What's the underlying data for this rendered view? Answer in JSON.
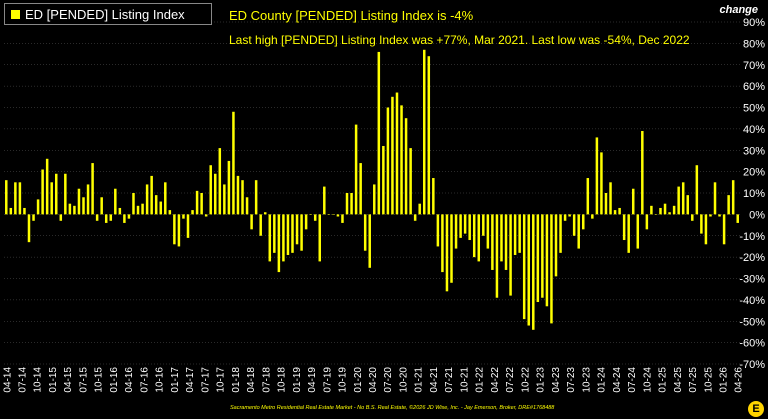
{
  "legend": {
    "label": "ED [PENDED] Listing Index"
  },
  "notes": {
    "line1": "ED County [PENDED] Listing Index is -4%",
    "line2": "Last high [PENDED] Listing Index was +77%, Mar 2021. Last low was -54%, Dec 2022"
  },
  "unit_label": "change",
  "footer": "Sacramento Metro Residential Real Estate Market - No B.S. Real Estate, ©2026 JD Wise, Inc. - Jay Emerson, Broker, DRE#1768488",
  "logo_text": "E",
  "colors": {
    "bar": "#ffff00",
    "background": "#000000",
    "grid": "#555555",
    "text": "#ffffff"
  },
  "chart_data": {
    "type": "bar",
    "series": [
      {
        "name": "ED [PENDED] Listing Index",
        "color": "#ffff00"
      }
    ],
    "ylim": [
      -70,
      90
    ],
    "yticks": [
      -70,
      -60,
      -50,
      -40,
      -30,
      -20,
      -10,
      0,
      10,
      20,
      30,
      40,
      50,
      60,
      70,
      80,
      90
    ],
    "ytick_labels": [
      "-70%",
      "-60%",
      "-50%",
      "-40%",
      "-30%",
      "-20%",
      "-10%",
      "0%",
      "10%",
      "20%",
      "30%",
      "40%",
      "50%",
      "60%",
      "70%",
      "80%",
      "90%"
    ],
    "xtick_labels": [
      "04-14",
      "07-14",
      "10-14",
      "01-15",
      "04-15",
      "07-15",
      "10-15",
      "01-16",
      "04-16",
      "07-16",
      "10-16",
      "01-17",
      "04-17",
      "07-17",
      "10-17",
      "01-18",
      "04-18",
      "07-18",
      "10-18",
      "01-19",
      "04-19",
      "07-19",
      "10-19",
      "01-20",
      "04-20",
      "07-20",
      "10-20",
      "01-21",
      "04-21",
      "07-21",
      "10-21",
      "01-22",
      "04-22",
      "07-22",
      "10-22",
      "01-23",
      "04-23",
      "07-23",
      "10-23",
      "01-24",
      "04-24",
      "07-24",
      "10-24",
      "01-25",
      "04-25",
      "07-25",
      "10-25",
      "01-26",
      "04-26"
    ],
    "grid": true,
    "legend_position": "top-left",
    "values": [
      16,
      3,
      15,
      15,
      3,
      -13,
      -3,
      7,
      21,
      26,
      15,
      19,
      -3,
      19,
      5,
      4,
      12,
      8,
      14,
      24,
      -3,
      8,
      -4,
      -3,
      12,
      3,
      -4,
      -2,
      10,
      4,
      5,
      14,
      18,
      9,
      6,
      15,
      2,
      -14,
      -15,
      -2,
      -11,
      2,
      11,
      10,
      -1,
      23,
      19,
      31,
      14,
      25,
      48,
      18,
      16,
      8,
      -7,
      16,
      -10,
      1,
      -22,
      -18,
      -27,
      -22,
      -19,
      -18,
      -14,
      -17,
      -7,
      0,
      -3,
      -22,
      13,
      0,
      0,
      -1,
      -4,
      10,
      10,
      42,
      24,
      -17,
      -25,
      14,
      76,
      32,
      50,
      55,
      57,
      51,
      45,
      31,
      -3,
      5,
      77,
      74,
      17,
      -15,
      -27,
      -36,
      -32,
      -16,
      -11,
      -9,
      -12,
      -20,
      -22,
      -10,
      -16,
      -26,
      -39,
      -22,
      -26,
      -38,
      -19,
      -18,
      -49,
      -52,
      -54,
      -41,
      -39,
      -43,
      -51,
      -29,
      -18,
      -3,
      -1,
      -10,
      -16,
      -7,
      17,
      -2,
      36,
      29,
      10,
      15,
      2,
      3,
      -12,
      -18,
      12,
      -16,
      39,
      -7,
      4,
      0,
      3,
      5,
      1,
      4,
      13,
      15,
      9,
      -3,
      23,
      -9,
      -14,
      -1,
      15,
      -1,
      -14,
      9,
      16,
      -4
    ]
  }
}
